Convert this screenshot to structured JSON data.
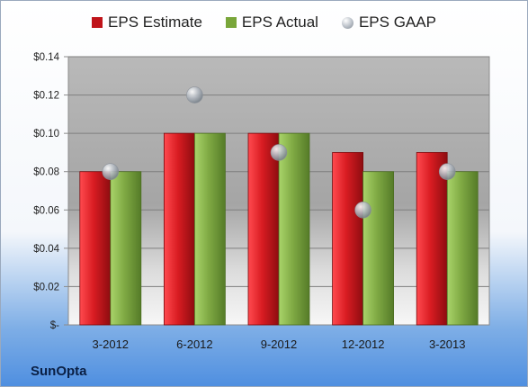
{
  "chart_data": {
    "type": "bar",
    "categories": [
      "3-2012",
      "6-2012",
      "9-2012",
      "12-2012",
      "3-2013"
    ],
    "series": [
      {
        "name": "EPS Estimate",
        "kind": "bar",
        "color": "#c0141a",
        "values": [
          0.08,
          0.1,
          0.1,
          0.09,
          0.09
        ]
      },
      {
        "name": "EPS Actual",
        "kind": "bar",
        "color": "#79a63a",
        "values": [
          0.08,
          0.1,
          0.1,
          0.08,
          0.08
        ]
      },
      {
        "name": "EPS GAAP",
        "kind": "marker",
        "color": "#b0b6be",
        "values": [
          0.08,
          0.12,
          0.09,
          0.06,
          0.08
        ]
      }
    ],
    "y_ticks": [
      {
        "value": 0,
        "label": "$-"
      },
      {
        "value": 0.02,
        "label": "$0.02"
      },
      {
        "value": 0.04,
        "label": "$0.04"
      },
      {
        "value": 0.06,
        "label": "$0.06"
      },
      {
        "value": 0.08,
        "label": "$0.08"
      },
      {
        "value": 0.1,
        "label": "$0.10"
      },
      {
        "value": 0.12,
        "label": "$0.12"
      },
      {
        "value": 0.14,
        "label": "$0.14"
      }
    ],
    "ylim": [
      0,
      0.14
    ],
    "grid": true,
    "legend": "top",
    "title": "",
    "xlabel": "",
    "ylabel": ""
  },
  "company": "SunOpta"
}
